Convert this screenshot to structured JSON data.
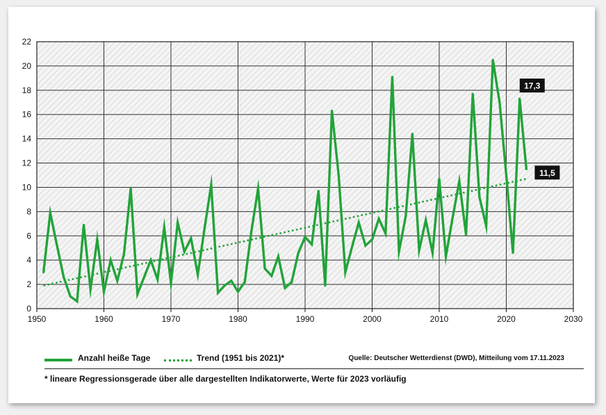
{
  "chart_data": {
    "type": "line",
    "x": [
      1951,
      1952,
      1953,
      1954,
      1955,
      1956,
      1957,
      1958,
      1959,
      1960,
      1961,
      1962,
      1963,
      1964,
      1965,
      1966,
      1967,
      1968,
      1969,
      1970,
      1971,
      1972,
      1973,
      1974,
      1975,
      1976,
      1977,
      1978,
      1979,
      1980,
      1981,
      1982,
      1983,
      1984,
      1985,
      1986,
      1987,
      1988,
      1989,
      1990,
      1991,
      1992,
      1993,
      1994,
      1995,
      1996,
      1997,
      1998,
      1999,
      2000,
      2001,
      2002,
      2003,
      2004,
      2005,
      2006,
      2007,
      2008,
      2009,
      2010,
      2011,
      2012,
      2013,
      2014,
      2015,
      2016,
      2017,
      2018,
      2019,
      2020,
      2021,
      2022,
      2023
    ],
    "series": [
      {
        "name": "Anzahl heiße Tage",
        "values": [
          3.0,
          7.9,
          5.2,
          2.6,
          1.0,
          0.6,
          6.9,
          1.6,
          5.7,
          1.4,
          4.0,
          2.3,
          4.5,
          9.9,
          1.2,
          2.6,
          4.0,
          2.4,
          6.7,
          2.1,
          7.1,
          4.7,
          5.8,
          2.8,
          6.6,
          10.2,
          1.3,
          1.9,
          2.3,
          1.4,
          2.2,
          6.4,
          9.9,
          3.3,
          2.7,
          4.3,
          1.7,
          2.2,
          4.6,
          5.9,
          5.3,
          9.7,
          1.9,
          16.3,
          11.0,
          3.0,
          5.1,
          7.1,
          5.2,
          5.7,
          7.4,
          6.2,
          19.1,
          4.7,
          7.6,
          14.4,
          4.8,
          7.3,
          4.6,
          10.7,
          4.3,
          7.5,
          10.5,
          6.1,
          17.7,
          9.2,
          6.8,
          20.5,
          17.0,
          11.0,
          4.6,
          17.3,
          11.5
        ],
        "color": "#22a33a"
      }
    ],
    "trend": {
      "name": "Trend (1951 bis 2021)*",
      "x": [
        1951,
        2023
      ],
      "y": [
        1.9,
        10.7
      ]
    },
    "annotations": [
      {
        "year": 2022,
        "value": 17.3,
        "text": "17,3"
      },
      {
        "year": 2023,
        "value": 11.5,
        "text": "11,5"
      }
    ],
    "xlim": [
      1950,
      2030
    ],
    "ylim": [
      0,
      22
    ],
    "xticks": [
      1950,
      1960,
      1970,
      1980,
      1990,
      2000,
      2010,
      2020,
      2030
    ],
    "yticks": [
      0,
      2,
      4,
      6,
      8,
      10,
      12,
      14,
      16,
      18,
      20,
      22
    ],
    "grid": true,
    "xlabel": "",
    "ylabel": ""
  },
  "legend": {
    "series_label": "Anzahl heiße Tage",
    "trend_label": "Trend (1951 bis 2021)*"
  },
  "source": "Quelle: Deutscher Wetterdienst (DWD), Mitteilung vom 17.11.2023",
  "footnote": "* lineare Regressionsgerade über alle dargestellten Indikatorwerte, Werte für 2023 vorläufig",
  "colors": {
    "line": "#22a33a",
    "grid": "#333333",
    "label_bg": "#111111"
  }
}
